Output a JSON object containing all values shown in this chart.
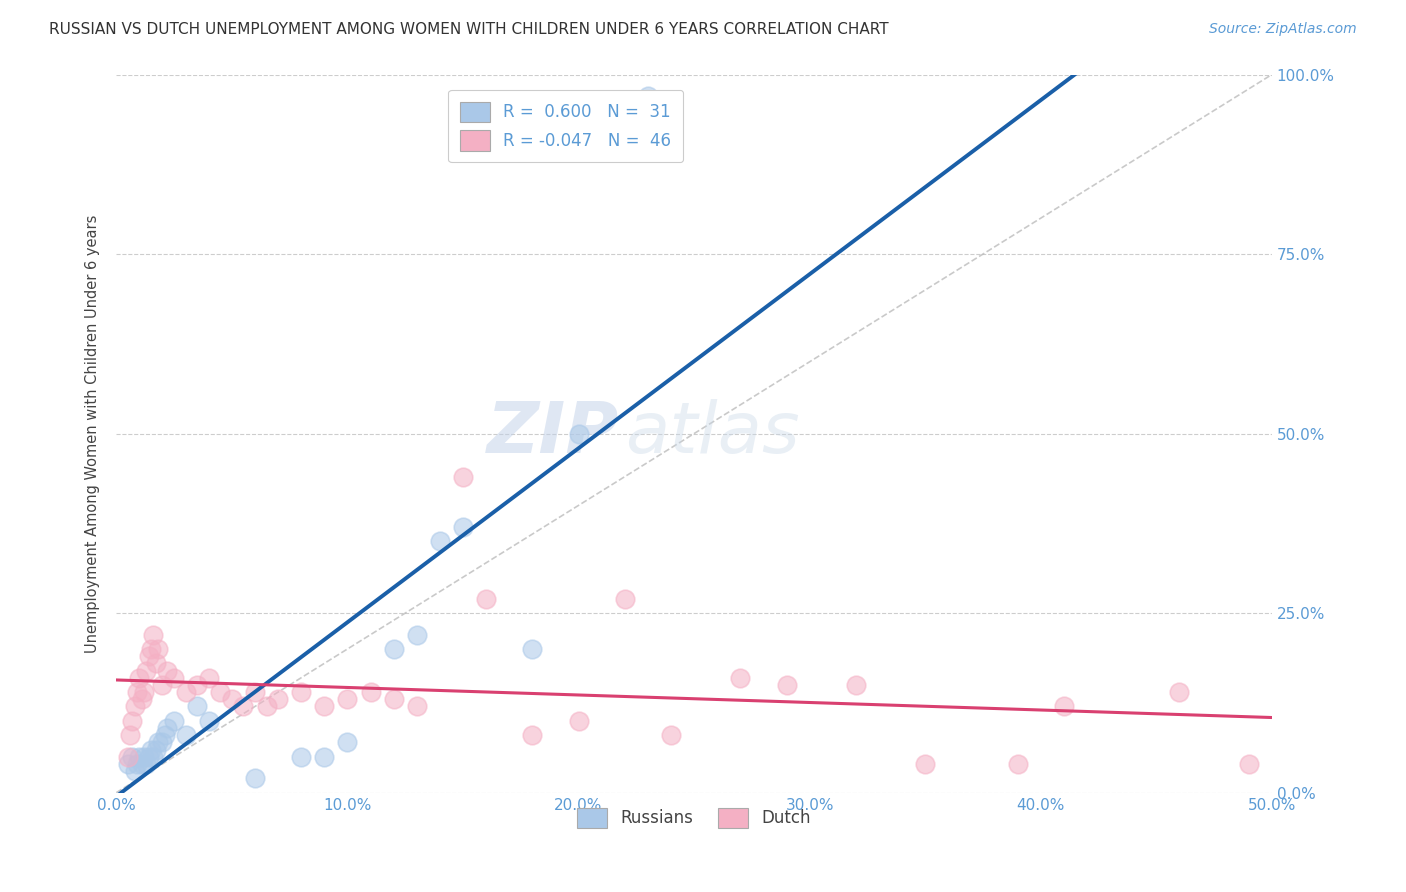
{
  "title": "RUSSIAN VS DUTCH UNEMPLOYMENT AMONG WOMEN WITH CHILDREN UNDER 6 YEARS CORRELATION CHART",
  "source": "Source: ZipAtlas.com",
  "ylabel": "Unemployment Among Women with Children Under 6 years",
  "xlabel_ticks": [
    "0.0%",
    "10.0%",
    "20.0%",
    "30.0%",
    "40.0%",
    "50.0%"
  ],
  "right_ytick_labels": [
    "100.0%",
    "75.0%",
    "50.0%",
    "25.0%",
    "0.0%"
  ],
  "xlim": [
    0.0,
    0.5
  ],
  "ylim": [
    0.0,
    1.0
  ],
  "watermark_zip": "ZIP",
  "watermark_atlas": "atlas",
  "russian_color": "#aac8e8",
  "dutch_color": "#f4b0c4",
  "russian_line_color": "#1a5fa8",
  "dutch_line_color": "#d94070",
  "diagonal_color": "#b8b8b8",
  "russian_scatter": [
    [
      0.005,
      0.04
    ],
    [
      0.007,
      0.05
    ],
    [
      0.008,
      0.03
    ],
    [
      0.009,
      0.04
    ],
    [
      0.01,
      0.05
    ],
    [
      0.011,
      0.04
    ],
    [
      0.012,
      0.05
    ],
    [
      0.013,
      0.04
    ],
    [
      0.014,
      0.05
    ],
    [
      0.015,
      0.06
    ],
    [
      0.016,
      0.05
    ],
    [
      0.017,
      0.06
    ],
    [
      0.018,
      0.07
    ],
    [
      0.02,
      0.07
    ],
    [
      0.021,
      0.08
    ],
    [
      0.022,
      0.09
    ],
    [
      0.025,
      0.1
    ],
    [
      0.03,
      0.08
    ],
    [
      0.035,
      0.12
    ],
    [
      0.04,
      0.1
    ],
    [
      0.06,
      0.02
    ],
    [
      0.08,
      0.05
    ],
    [
      0.09,
      0.05
    ],
    [
      0.1,
      0.07
    ],
    [
      0.12,
      0.2
    ],
    [
      0.13,
      0.22
    ],
    [
      0.14,
      0.35
    ],
    [
      0.15,
      0.37
    ],
    [
      0.18,
      0.2
    ],
    [
      0.2,
      0.5
    ],
    [
      0.23,
      0.97
    ]
  ],
  "dutch_scatter": [
    [
      0.005,
      0.05
    ],
    [
      0.006,
      0.08
    ],
    [
      0.007,
      0.1
    ],
    [
      0.008,
      0.12
    ],
    [
      0.009,
      0.14
    ],
    [
      0.01,
      0.16
    ],
    [
      0.011,
      0.13
    ],
    [
      0.012,
      0.14
    ],
    [
      0.013,
      0.17
    ],
    [
      0.014,
      0.19
    ],
    [
      0.015,
      0.2
    ],
    [
      0.016,
      0.22
    ],
    [
      0.017,
      0.18
    ],
    [
      0.018,
      0.2
    ],
    [
      0.02,
      0.15
    ],
    [
      0.022,
      0.17
    ],
    [
      0.025,
      0.16
    ],
    [
      0.03,
      0.14
    ],
    [
      0.035,
      0.15
    ],
    [
      0.04,
      0.16
    ],
    [
      0.045,
      0.14
    ],
    [
      0.05,
      0.13
    ],
    [
      0.055,
      0.12
    ],
    [
      0.06,
      0.14
    ],
    [
      0.065,
      0.12
    ],
    [
      0.07,
      0.13
    ],
    [
      0.08,
      0.14
    ],
    [
      0.09,
      0.12
    ],
    [
      0.1,
      0.13
    ],
    [
      0.11,
      0.14
    ],
    [
      0.12,
      0.13
    ],
    [
      0.13,
      0.12
    ],
    [
      0.15,
      0.44
    ],
    [
      0.16,
      0.27
    ],
    [
      0.18,
      0.08
    ],
    [
      0.2,
      0.1
    ],
    [
      0.22,
      0.27
    ],
    [
      0.24,
      0.08
    ],
    [
      0.27,
      0.16
    ],
    [
      0.29,
      0.15
    ],
    [
      0.32,
      0.15
    ],
    [
      0.35,
      0.04
    ],
    [
      0.39,
      0.04
    ],
    [
      0.41,
      0.12
    ],
    [
      0.46,
      0.14
    ],
    [
      0.49,
      0.04
    ]
  ],
  "title_fontsize": 11,
  "source_fontsize": 10,
  "tick_label_color": "#5b9bd5",
  "grid_color": "#c8c8c8",
  "background_color": "#ffffff"
}
